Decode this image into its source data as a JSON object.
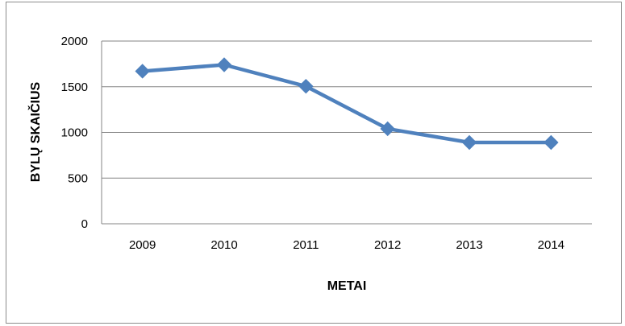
{
  "chart_data": {
    "type": "line",
    "title": "",
    "xlabel": "METAI",
    "ylabel": "BYLŲ  SKAIČIUS",
    "categories": [
      "2009",
      "2010",
      "2011",
      "2012",
      "2013",
      "2014"
    ],
    "series": [
      {
        "values": [
          1670,
          1740,
          1505,
          1040,
          890,
          890
        ],
        "color": "#4f81bd",
        "marker": "diamond"
      }
    ],
    "ylim": [
      0,
      2000
    ],
    "yticks": [
      0,
      500,
      1000,
      1500,
      2000
    ],
    "grid": "horizontal",
    "legend": "none"
  }
}
